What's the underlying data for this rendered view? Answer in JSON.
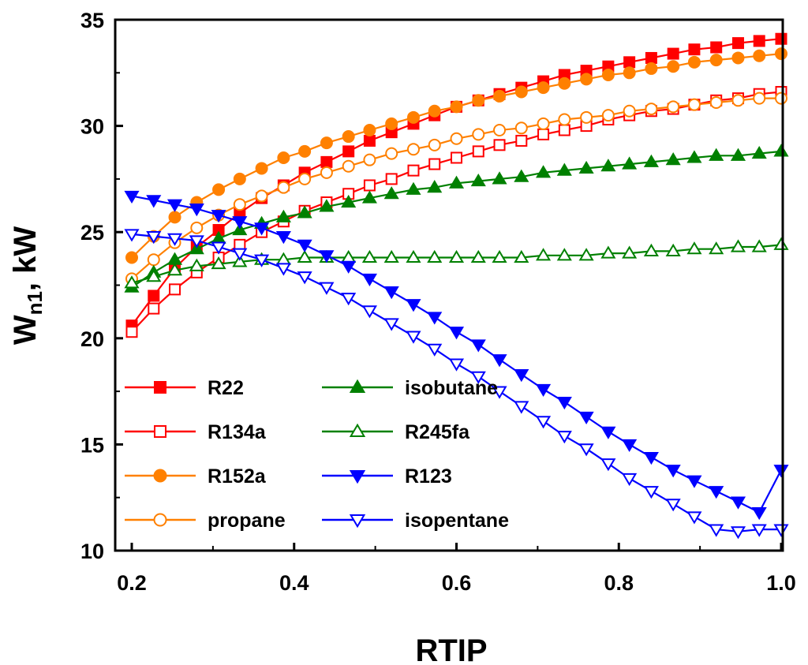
{
  "chart_data": {
    "type": "line",
    "title": "",
    "xlabel": "RTIP",
    "ylabel_main": "W",
    "ylabel_sub": "n1",
    "ylabel_suffix": ", kW",
    "xlim": [
      0.2,
      1.0
    ],
    "ylim": [
      10,
      35
    ],
    "xticks": [
      0.2,
      0.4,
      0.6,
      0.8,
      1.0
    ],
    "xtick_labels": [
      "0.2",
      "0.4",
      "0.6",
      "0.8",
      "1.0"
    ],
    "yticks": [
      10,
      15,
      20,
      25,
      30,
      35
    ],
    "ytick_labels": [
      "10",
      "15",
      "20",
      "25",
      "30",
      "35"
    ],
    "grid": false,
    "legend_position": "bottom-left",
    "x": [
      0.2,
      0.227,
      0.253,
      0.28,
      0.307,
      0.333,
      0.36,
      0.387,
      0.413,
      0.44,
      0.467,
      0.493,
      0.52,
      0.547,
      0.573,
      0.6,
      0.627,
      0.653,
      0.68,
      0.707,
      0.733,
      0.76,
      0.787,
      0.813,
      0.84,
      0.867,
      0.893,
      0.92,
      0.947,
      0.973,
      1.0
    ],
    "series": [
      {
        "name": "R22",
        "color": "#ff0000",
        "marker": "square",
        "filled": true,
        "values": [
          20.6,
          22.0,
          23.3,
          24.3,
          25.1,
          25.9,
          26.6,
          27.2,
          27.8,
          28.3,
          28.8,
          29.3,
          29.7,
          30.1,
          30.5,
          30.9,
          31.2,
          31.5,
          31.8,
          32.1,
          32.4,
          32.6,
          32.8,
          33.0,
          33.2,
          33.4,
          33.6,
          33.7,
          33.9,
          34.0,
          34.1
        ]
      },
      {
        "name": "R134a",
        "color": "#ff0000",
        "marker": "square",
        "filled": false,
        "values": [
          20.3,
          21.4,
          22.3,
          23.1,
          23.8,
          24.4,
          25.0,
          25.5,
          26.0,
          26.4,
          26.8,
          27.2,
          27.5,
          27.9,
          28.2,
          28.5,
          28.8,
          29.1,
          29.3,
          29.6,
          29.8,
          30.0,
          30.3,
          30.5,
          30.7,
          30.8,
          31.0,
          31.2,
          31.3,
          31.5,
          31.6
        ]
      },
      {
        "name": "R152a",
        "color": "#ff8000",
        "marker": "circle",
        "filled": true,
        "values": [
          23.8,
          24.8,
          25.7,
          26.4,
          27.0,
          27.5,
          28.0,
          28.5,
          28.8,
          29.2,
          29.5,
          29.8,
          30.1,
          30.4,
          30.7,
          30.9,
          31.2,
          31.4,
          31.6,
          31.8,
          32.0,
          32.2,
          32.4,
          32.5,
          32.7,
          32.8,
          33.0,
          33.1,
          33.2,
          33.3,
          33.4
        ]
      },
      {
        "name": "propane",
        "color": "#ff8000",
        "marker": "circle",
        "filled": false,
        "values": [
          22.8,
          23.7,
          24.5,
          25.2,
          25.8,
          26.3,
          26.7,
          27.1,
          27.5,
          27.8,
          28.1,
          28.4,
          28.7,
          28.9,
          29.1,
          29.4,
          29.6,
          29.8,
          29.9,
          30.1,
          30.3,
          30.4,
          30.5,
          30.7,
          30.8,
          30.9,
          31.0,
          31.1,
          31.2,
          31.3,
          31.3
        ]
      },
      {
        "name": "isobutane",
        "color": "#008000",
        "marker": "triangle-up",
        "filled": true,
        "values": [
          22.4,
          23.1,
          23.7,
          24.2,
          24.7,
          25.1,
          25.4,
          25.7,
          25.9,
          26.2,
          26.4,
          26.6,
          26.8,
          27.0,
          27.1,
          27.3,
          27.4,
          27.5,
          27.6,
          27.8,
          27.9,
          28.0,
          28.1,
          28.2,
          28.3,
          28.4,
          28.5,
          28.6,
          28.6,
          28.7,
          28.8
        ]
      },
      {
        "name": "R245fa",
        "color": "#008000",
        "marker": "triangle-up",
        "filled": false,
        "values": [
          22.6,
          22.9,
          23.2,
          23.4,
          23.5,
          23.6,
          23.7,
          23.7,
          23.8,
          23.8,
          23.8,
          23.8,
          23.8,
          23.8,
          23.8,
          23.8,
          23.8,
          23.8,
          23.8,
          23.9,
          23.9,
          23.9,
          24.0,
          24.0,
          24.1,
          24.1,
          24.2,
          24.2,
          24.3,
          24.3,
          24.4
        ]
      },
      {
        "name": "R123",
        "color": "#0000ff",
        "marker": "triangle-down",
        "filled": true,
        "values": [
          26.7,
          26.5,
          26.3,
          26.1,
          25.8,
          25.5,
          25.2,
          24.8,
          24.4,
          23.9,
          23.4,
          22.8,
          22.2,
          21.6,
          21.0,
          20.3,
          19.7,
          19.0,
          18.3,
          17.6,
          17.0,
          16.3,
          15.6,
          15.0,
          14.4,
          13.8,
          13.3,
          12.8,
          12.3,
          11.8,
          13.8
        ]
      },
      {
        "name": "isopentane",
        "color": "#0000ff",
        "marker": "triangle-down",
        "filled": false,
        "values": [
          24.9,
          24.8,
          24.7,
          24.6,
          24.3,
          24.0,
          23.7,
          23.3,
          22.9,
          22.4,
          21.9,
          21.3,
          20.7,
          20.1,
          19.5,
          18.8,
          18.2,
          17.5,
          16.8,
          16.1,
          15.4,
          14.8,
          14.1,
          13.4,
          12.8,
          12.2,
          11.6,
          11.0,
          10.9,
          11.0,
          11.0
        ]
      }
    ]
  }
}
